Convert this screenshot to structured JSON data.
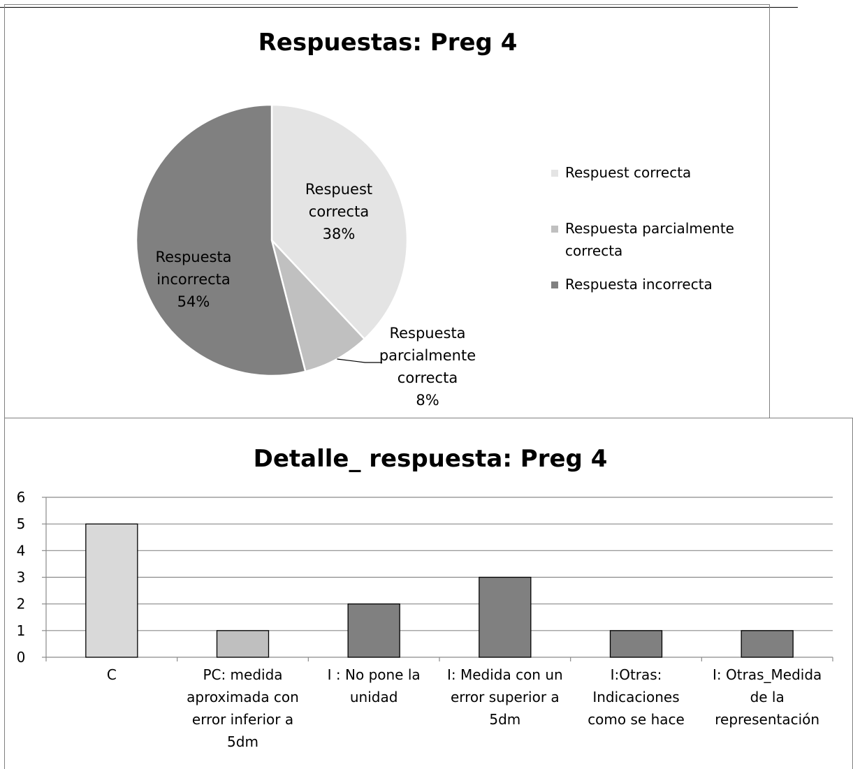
{
  "chart_data": [
    {
      "type": "pie",
      "title": "Respuestas: Preg 4",
      "legend_position": "right",
      "slices": [
        {
          "label": "Respuest correcta",
          "data_label": [
            "Respuest",
            "correcta",
            "38%"
          ],
          "percent": 38,
          "color": "#e4e4e4"
        },
        {
          "label": "Respuesta parcialmente correcta",
          "data_label": [
            "Respuesta",
            "parcialmente",
            "correcta",
            "8%"
          ],
          "percent": 8,
          "color": "#c0c0c0"
        },
        {
          "label": "Respuesta incorrecta",
          "data_label": [
            "Respuesta",
            "incorrecta",
            "54%"
          ],
          "percent": 54,
          "color": "#808080"
        }
      ],
      "legend": [
        {
          "lines": [
            "Respuest correcta"
          ],
          "color": "#e4e4e4"
        },
        {
          "lines": [
            "Respuesta parcialmente",
            "correcta"
          ],
          "color": "#c0c0c0"
        },
        {
          "lines": [
            "Respuesta incorrecta"
          ],
          "color": "#808080"
        }
      ]
    },
    {
      "type": "bar",
      "title": "Detalle_ respuesta: Preg 4",
      "xlabel": "",
      "ylabel": "",
      "ylim": [
        0,
        6
      ],
      "yticks": [
        "0",
        "1",
        "2",
        "3",
        "4",
        "5",
        "6"
      ],
      "grid": true,
      "categories": [
        [
          "C"
        ],
        [
          "PC: medida",
          "aproximada con",
          "error inferior a",
          "5dm"
        ],
        [
          "I : No pone la",
          "unidad"
        ],
        [
          "I: Medida con un",
          "error superior a",
          "5dm"
        ],
        [
          "I:Otras:",
          "Indicaciones",
          "como se hace"
        ],
        [
          "I: Otras_Medida",
          "de la",
          "representación"
        ]
      ],
      "values": [
        5,
        1,
        2,
        3,
        1,
        1
      ],
      "colors": [
        "#d9d9d9",
        "#bfbfbf",
        "#808080",
        "#808080",
        "#808080",
        "#808080"
      ]
    }
  ]
}
